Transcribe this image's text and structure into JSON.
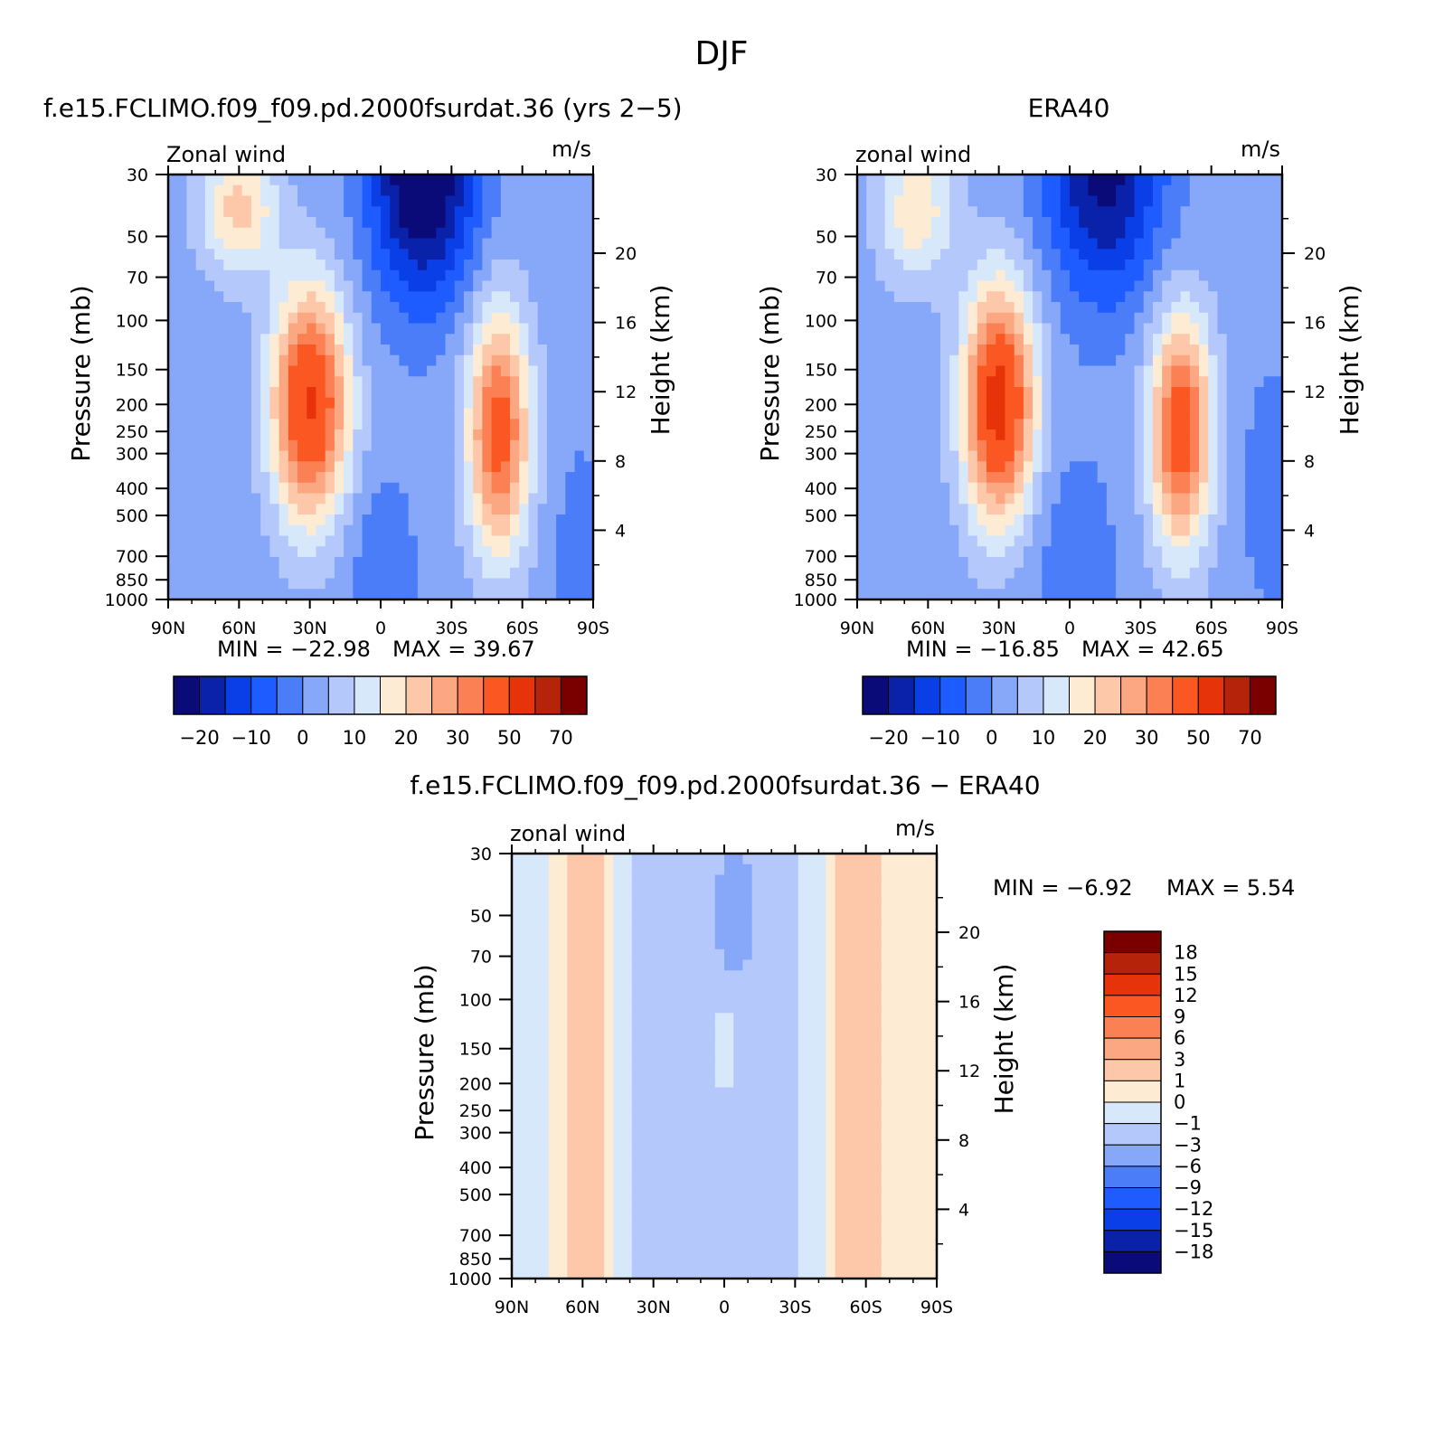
{
  "page_title": "DJF",
  "colors": {
    "main_scale": [
      "#0a0a78",
      "#0a22aa",
      "#0a3ee6",
      "#1e5cff",
      "#4b7df9",
      "#87a7f9",
      "#b4c8fb",
      "#d7e8fb",
      "#fdebd4",
      "#fdc8aa",
      "#fba882",
      "#fb8053",
      "#fb5722",
      "#e6330a",
      "#b4230a",
      "#7a0000"
    ],
    "diff_scale": [
      "#0a0a78",
      "#0a22aa",
      "#0a3ee6",
      "#1e5cff",
      "#4b7df9",
      "#87a7f9",
      "#b4c8fb",
      "#d7e8fb",
      "#fdebd4",
      "#fdc8aa",
      "#fba882",
      "#fb8053",
      "#fb5722",
      "#e6330a",
      "#b4230a",
      "#7a0000"
    ]
  },
  "chart_data": [
    {
      "type": "heatmap",
      "panel_title": "f.e15.FCLIMO.f09_f09.pd.2000fsurdat.36 (yrs 2−5)",
      "left_string": "Zonal wind",
      "right_string": "m/s",
      "ylabel": "Pressure (mb)",
      "ylabel_right": "Height (km)",
      "x_ticks": [
        "90N",
        "60N",
        "30N",
        "0",
        "30S",
        "60S",
        "90S"
      ],
      "y_ticks": [
        "30",
        "50",
        "70",
        "100",
        "150",
        "200",
        "250",
        "300",
        "400",
        "500",
        "700",
        "850",
        "1000"
      ],
      "y_ticks_right": [
        "20",
        "16",
        "12",
        "8",
        "4"
      ],
      "ylim": [
        1000,
        30
      ],
      "log_y": true,
      "min_text": "MIN =  −22.98",
      "max_text": "MAX =   39.67",
      "colorbar_labels": [
        "−20",
        "−10",
        "0",
        "10",
        "20",
        "30",
        "50",
        "70"
      ],
      "jets": [
        {
          "lat": 30,
          "level": 200,
          "max": 39.67
        },
        {
          "lat": -50,
          "level": 250,
          "max": 34
        }
      ],
      "min_location": {
        "lat": -18,
        "level": 30,
        "value": -22.98
      }
    },
    {
      "type": "heatmap",
      "panel_title": "ERA40",
      "left_string": "zonal wind",
      "right_string": "m/s",
      "ylabel": "Pressure (mb)",
      "ylabel_right": "Height (km)",
      "x_ticks": [
        "90N",
        "60N",
        "30N",
        "0",
        "30S",
        "60S",
        "90S"
      ],
      "y_ticks": [
        "30",
        "50",
        "70",
        "100",
        "150",
        "200",
        "250",
        "300",
        "400",
        "500",
        "700",
        "850",
        "1000"
      ],
      "y_ticks_right": [
        "20",
        "16",
        "12",
        "8",
        "4"
      ],
      "ylim": [
        1000,
        30
      ],
      "log_y": true,
      "min_text": "MIN =  −16.85",
      "max_text": "MAX =   42.65",
      "colorbar_labels": [
        "−20",
        "−10",
        "0",
        "10",
        "20",
        "30",
        "50",
        "70"
      ],
      "jets": [
        {
          "lat": 30,
          "level": 200,
          "max": 42.65
        },
        {
          "lat": -47,
          "level": 250,
          "max": 36
        }
      ],
      "min_location": {
        "lat": -15,
        "level": 30,
        "value": -16.85
      }
    },
    {
      "type": "heatmap",
      "panel_title": "f.e15.FCLIMO.f09_f09.pd.2000fsurdat.36 − ERA40",
      "left_string": "zonal wind",
      "right_string": "m/s",
      "ylabel": "Pressure (mb)",
      "ylabel_right": "Height (km)",
      "x_ticks": [
        "90N",
        "60N",
        "30N",
        "0",
        "30S",
        "60S",
        "90S"
      ],
      "y_ticks": [
        "30",
        "50",
        "70",
        "100",
        "150",
        "200",
        "250",
        "300",
        "400",
        "500",
        "700",
        "850",
        "1000"
      ],
      "y_ticks_right": [
        "20",
        "16",
        "12",
        "8",
        "4"
      ],
      "ylim": [
        1000,
        30
      ],
      "log_y": true,
      "min_text": "MIN =    −6.92",
      "max_text": "MAX =     5.54",
      "colorbar_labels": [
        "18",
        "15",
        "12",
        "9",
        "6",
        "3",
        "1",
        "0",
        "−1",
        "−3",
        "−6",
        "−9",
        "−12",
        "−15",
        "−18"
      ]
    }
  ]
}
